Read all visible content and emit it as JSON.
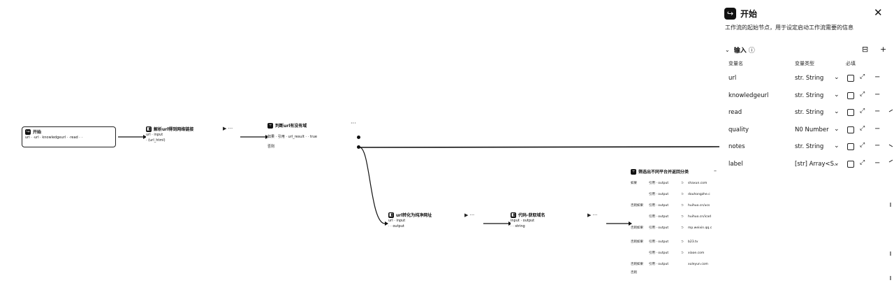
{
  "canvas": {
    "nodes": {
      "start": {
        "icon": "start-icon",
        "title": "开始",
        "summary": "url · ·url · knowledgeurl · ·read · ·"
      },
      "check_url": {
        "icon": "plugin-icon",
        "title": "解析url得到网络链接",
        "rows": [
          "url · input",
          "· (url_html)"
        ]
      },
      "judge_domain": {
        "icon": "condition-icon",
        "title": "判断url有没有域",
        "rows": [
          "如果 · 引用 · url_result · · true",
          "否则"
        ]
      },
      "url_convert": {
        "icon": "plugin-icon",
        "title": "url转化为纯净网址",
        "rows": [
          "url · input",
          "· · output"
        ]
      },
      "get_domain": {
        "icon": "plugin-icon",
        "title": "代码-获取域名",
        "rows": [
          "input · output",
          "· · string"
        ]
      },
      "filter": {
        "icon": "condition-icon",
        "title": "筛选出不同平台并返回分类"
      }
    },
    "condition_rows": [
      {
        "label": "如果",
        "ref": "引用 · output",
        "op": "⊃",
        "value": "shaxun.com"
      },
      {
        "label": "",
        "ref": "引用 · output",
        "op": "⊃",
        "value": "douhongzhe.c"
      },
      {
        "label": "否则如果",
        "ref": "引用 · output",
        "op": "⊃",
        "value": "huihuo.cn/ucs"
      },
      {
        "label": "",
        "ref": "引用 · output",
        "op": "⊃",
        "value": "huihuo.cn/icad"
      },
      {
        "label": "否则如果",
        "ref": "引用 · output",
        "op": "⊃",
        "value": "mp.weixin.qq.c"
      },
      {
        "label": "否则如果",
        "ref": "引用 · output",
        "op": "⊃",
        "value": "b23.tv"
      },
      {
        "label": "",
        "ref": "引用 · output",
        "op": "⊃",
        "value": "xiaoe.com"
      },
      {
        "label": "否则如果",
        "ref": "引用 · output",
        "op": "",
        "value": "xuleyun.com"
      },
      {
        "label": "否则",
        "ref": "",
        "op": "",
        "value": ""
      }
    ],
    "play_controls": "▶ ···",
    "more": "···"
  },
  "panel": {
    "icon": "start-icon",
    "title": "开始",
    "description": "工作流的起始节点，用于设定启动工作流需要的信息",
    "section": {
      "title": "输入",
      "info": "ⓘ"
    },
    "columns": {
      "name": "变量名",
      "type": "变量类型",
      "required": "必填"
    },
    "variables": [
      {
        "name": "url",
        "type": "str. String"
      },
      {
        "name": "knowledgeurl",
        "type": "str. String"
      },
      {
        "name": "read",
        "type": "str. String"
      },
      {
        "name": "quality",
        "type": "N0 Number"
      },
      {
        "name": "notes",
        "type": "str. String"
      },
      {
        "name": "label",
        "type": "[str] Array<S..."
      }
    ]
  },
  "colors": {
    "line": "#111111",
    "background": "#ffffff"
  }
}
